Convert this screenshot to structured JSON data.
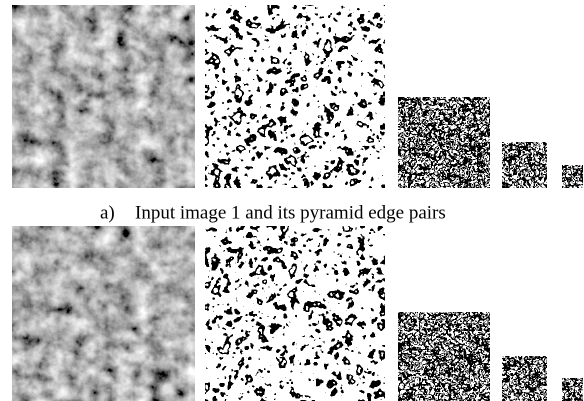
{
  "caption": {
    "label": "a)",
    "text": "Input image 1 and its pyramid edge pairs"
  }
}
